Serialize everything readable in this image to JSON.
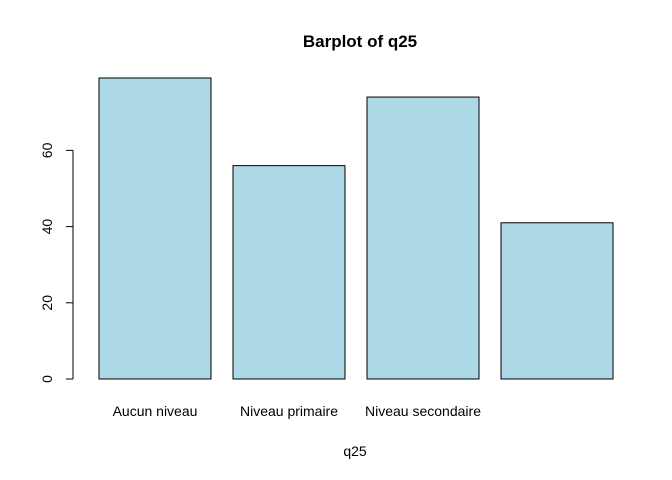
{
  "chart_data": {
    "type": "bar",
    "title": "Barplot of q25",
    "xlabel": "q25",
    "ylabel": "",
    "categories": [
      "Aucun niveau",
      "Niveau primaire",
      "Niveau secondaire",
      ""
    ],
    "values": [
      79,
      56,
      74,
      41
    ],
    "y_ticks": [
      0,
      20,
      40,
      60
    ],
    "ylim": [
      0,
      79
    ],
    "bar_color": "#ADD8E6",
    "grid": false,
    "legend": "none"
  }
}
